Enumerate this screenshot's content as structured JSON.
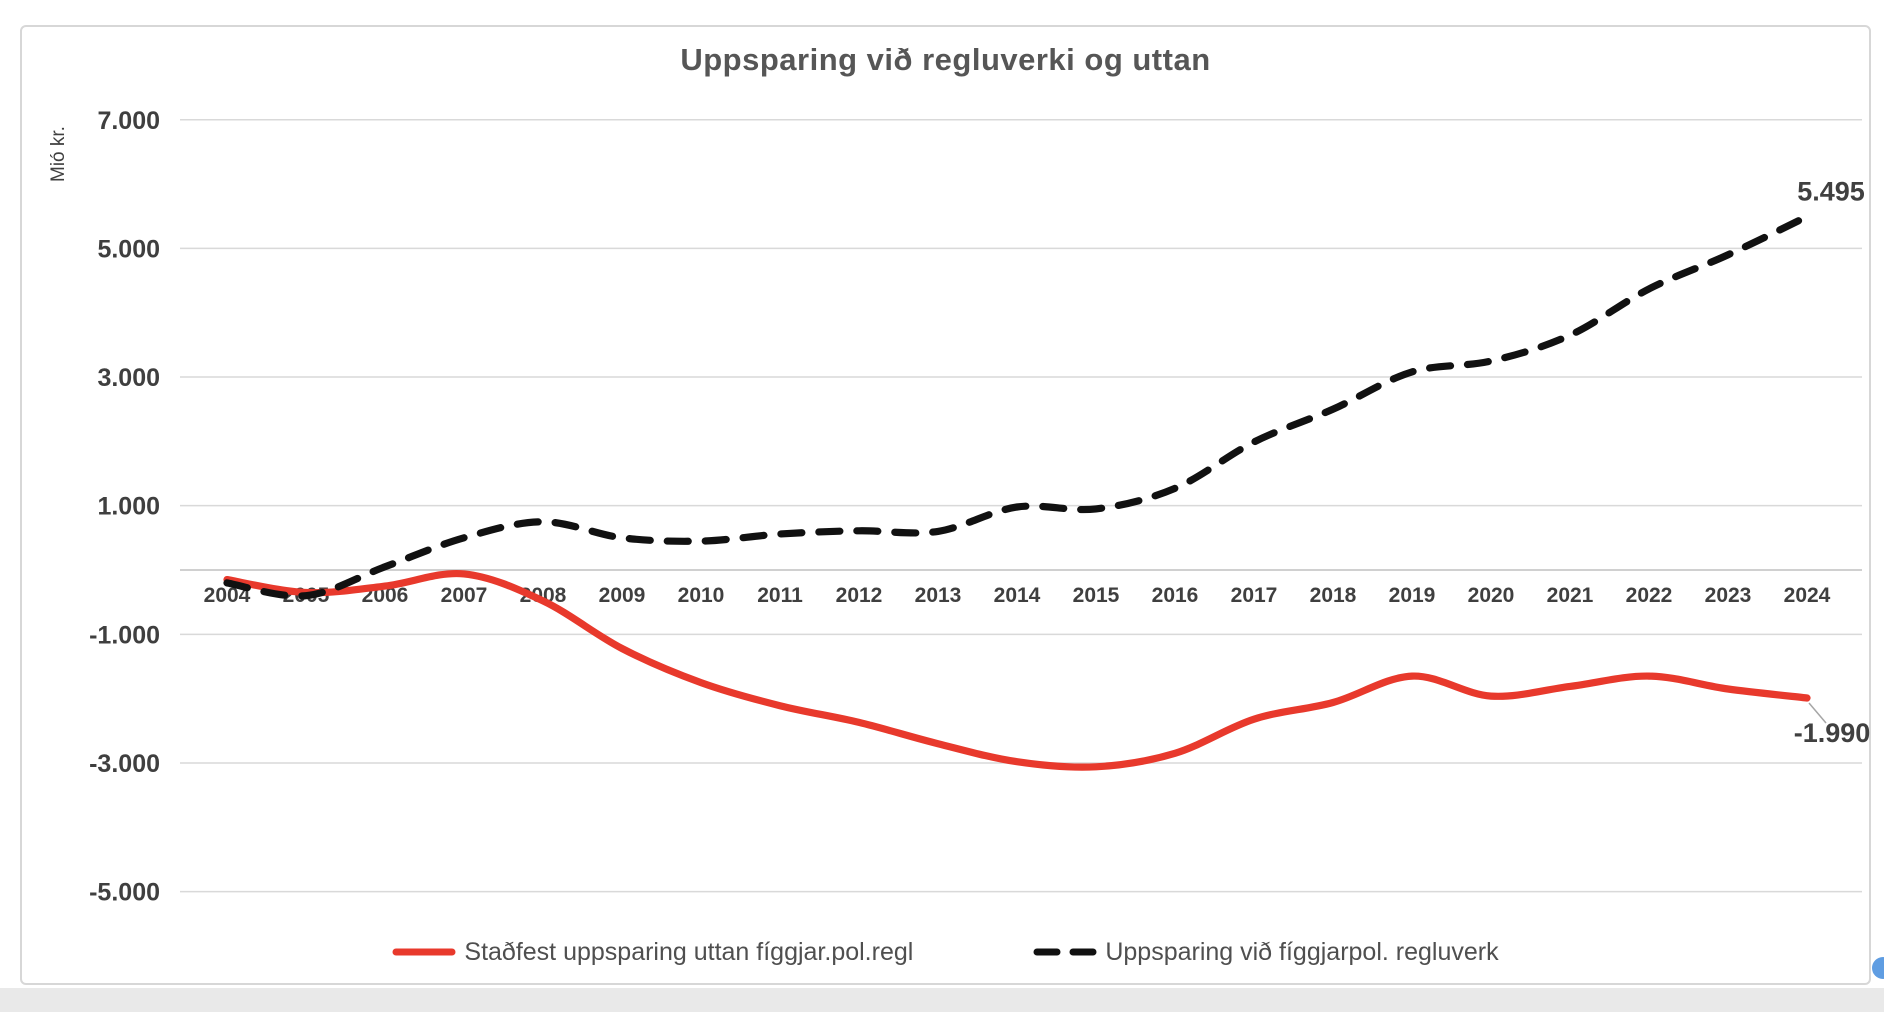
{
  "chart_data": {
    "type": "line",
    "title": "Uppsparing við regluverki og uttan",
    "xlabel": "",
    "ylabel": "Mió kr.",
    "x": [
      2004,
      2005,
      2006,
      2007,
      2008,
      2009,
      2010,
      2011,
      2012,
      2013,
      2014,
      2015,
      2016,
      2017,
      2018,
      2019,
      2020,
      2021,
      2022,
      2023,
      2024
    ],
    "series": [
      {
        "name": "Staðfest uppsparing uttan fíggjar.pol.regl",
        "style": "solid",
        "color": "#e8392c",
        "values": [
          -150,
          -350,
          -250,
          -60,
          -480,
          -1220,
          -1750,
          -2110,
          -2370,
          -2700,
          -2980,
          -3060,
          -2850,
          -2320,
          -2060,
          -1650,
          -1960,
          -1810,
          -1650,
          -1850,
          -1990
        ],
        "end_label": "-1.990"
      },
      {
        "name": "Uppsparing við fíggjarpol. regluverk",
        "style": "dashed",
        "color": "#111111",
        "values": [
          -200,
          -400,
          50,
          500,
          750,
          500,
          450,
          560,
          610,
          600,
          980,
          950,
          1270,
          1990,
          2500,
          3080,
          3250,
          3650,
          4370,
          4900,
          5495
        ],
        "end_label": "5.495"
      }
    ],
    "y_ticks": [
      {
        "v": 7000,
        "label": "7.000"
      },
      {
        "v": 5000,
        "label": "5.000"
      },
      {
        "v": 3000,
        "label": "3.000"
      },
      {
        "v": 1000,
        "label": "1.000"
      },
      {
        "v": -1000,
        "label": "-1.000"
      },
      {
        "v": -3000,
        "label": "-3.000"
      },
      {
        "v": -5000,
        "label": "-5.000"
      }
    ],
    "ylim": [
      -5600,
      7400
    ],
    "grid": true,
    "legend_position": "bottom"
  },
  "colors": {
    "gridline": "#d9d9d9",
    "zero_axis": "#c0c0c0",
    "tick_text": "#3f3f3f",
    "data_label_text": "#404040",
    "leader_line": "#a6a6a6"
  }
}
